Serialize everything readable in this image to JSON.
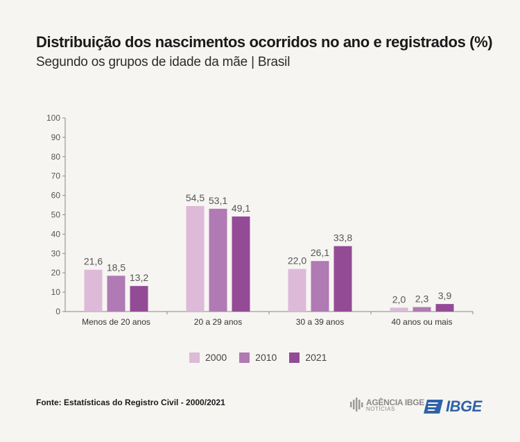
{
  "header": {
    "title": "Distribuição dos nascimentos ocorridos no ano e registrados (%)",
    "subtitle": "Segundo os grupos de idade da mãe | Brasil"
  },
  "chart_data": {
    "type": "bar",
    "categories": [
      "Menos de 20 anos",
      "20 a 29 anos",
      "30 a 39 anos",
      "40 anos ou mais"
    ],
    "series": [
      {
        "name": "2000",
        "color": "#dcbad8",
        "values": [
          21.6,
          54.5,
          22.0,
          2.0
        ],
        "labels": [
          "21,6",
          "54,5",
          "22,0",
          "2,0"
        ]
      },
      {
        "name": "2010",
        "color": "#b07ab4",
        "values": [
          18.5,
          53.1,
          26.1,
          2.3
        ],
        "labels": [
          "18,5",
          "53,1",
          "26,1",
          "2,3"
        ]
      },
      {
        "name": "2021",
        "color": "#944b96",
        "values": [
          13.2,
          49.1,
          33.8,
          3.9
        ],
        "labels": [
          "13,2",
          "49,1",
          "33,8",
          "3,9"
        ]
      }
    ],
    "yticks": [
      0,
      10,
      20,
      30,
      40,
      50,
      60,
      70,
      80,
      90,
      100
    ],
    "ylim": [
      0,
      100
    ],
    "legend_position": "bottom-center",
    "grid": false
  },
  "footer": {
    "source": "Fonte: Estatísticas do Registro Civil - 2000/2021",
    "agencia_line1": "AGÊNCIA IBGE",
    "agencia_line2": "NOTÍCIAS",
    "ibge": "IBGE"
  }
}
